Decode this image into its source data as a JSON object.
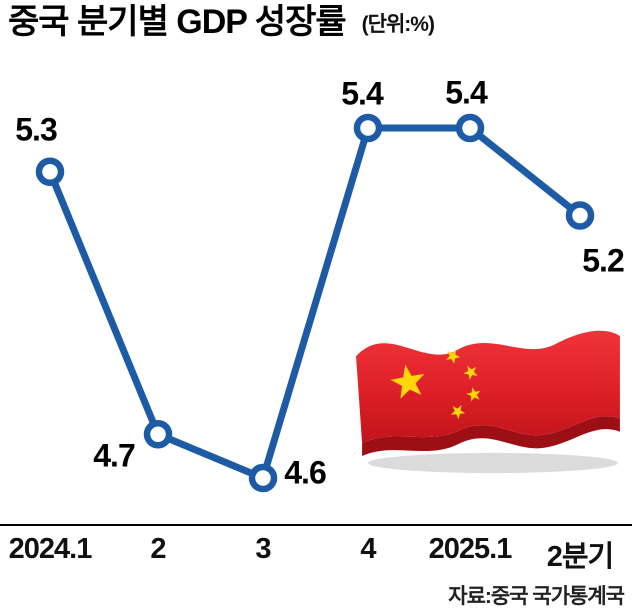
{
  "chart_data": {
    "type": "line",
    "title": "중국 분기별 GDP 성장률",
    "unit_label": "(단위:%)",
    "categories": [
      "2024.1",
      "2",
      "3",
      "4",
      "2025.1",
      "2분기"
    ],
    "values": [
      5.3,
      4.7,
      4.6,
      5.4,
      5.4,
      5.2
    ],
    "value_labels": [
      "5.3",
      "4.7",
      "4.6",
      "5.4",
      "5.4",
      "5.2"
    ],
    "source": "자료:중국 국가통계국",
    "xlabel": "",
    "ylabel": "",
    "ylim": [
      4.4,
      5.6
    ],
    "grid": false,
    "legend": "none",
    "line_color": "#1d5ba6",
    "marker_fill": "#ffffff",
    "axis_color": "#000000",
    "decoration": "china-flag-illustration"
  }
}
